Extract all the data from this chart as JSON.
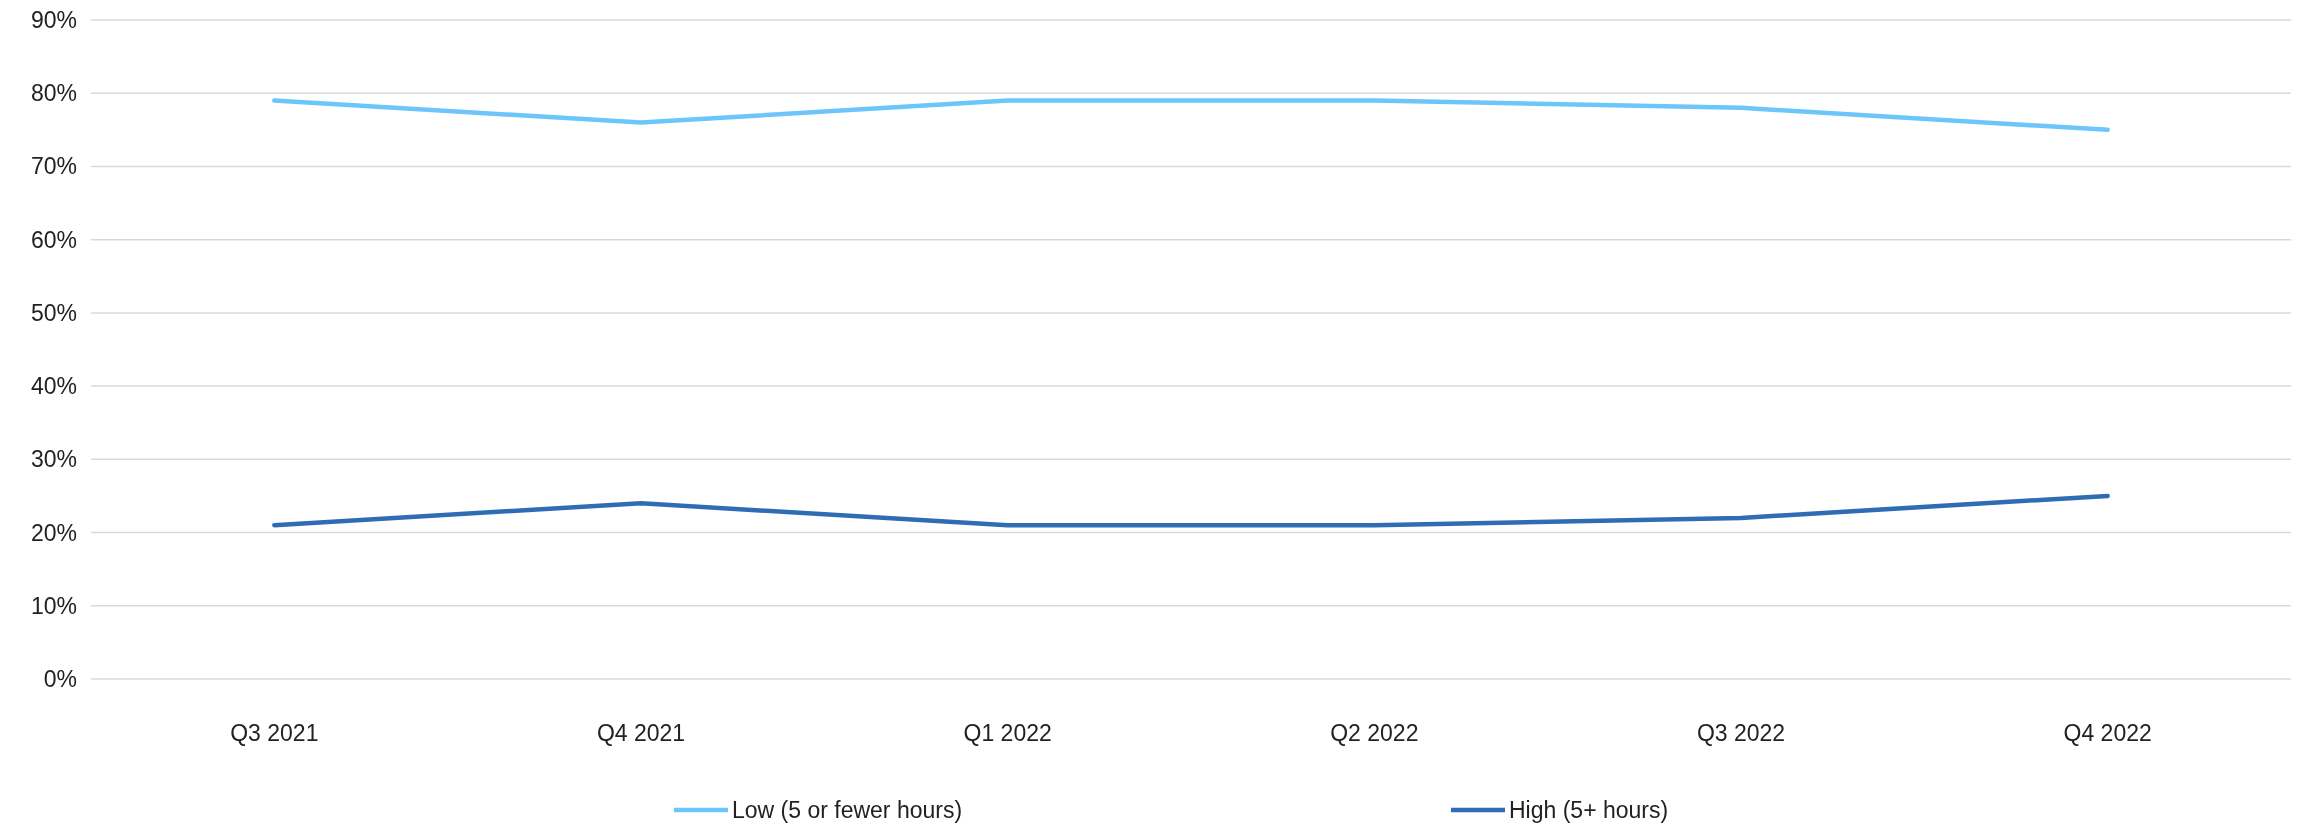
{
  "chart_data": {
    "type": "line",
    "categories": [
      "Q3 2021",
      "Q4 2021",
      "Q1 2022",
      "Q2 2022",
      "Q3 2022",
      "Q4 2022"
    ],
    "series": [
      {
        "name": "Low (5 or fewer hours)",
        "color": "#6cc6fb",
        "values": [
          79,
          76,
          79,
          79,
          78,
          75
        ]
      },
      {
        "name": "High (5+ hours)",
        "color": "#2e6db4",
        "values": [
          21,
          24,
          21,
          21,
          22,
          25
        ]
      }
    ],
    "ylim": [
      0,
      90
    ],
    "yticks": [
      {
        "value": 0,
        "label": "0%"
      },
      {
        "value": 10,
        "label": "10%"
      },
      {
        "value": 20,
        "label": "20%"
      },
      {
        "value": 30,
        "label": "30%"
      },
      {
        "value": 40,
        "label": "40%"
      },
      {
        "value": 50,
        "label": "50%"
      },
      {
        "value": 60,
        "label": "60%"
      },
      {
        "value": 70,
        "label": "70%"
      },
      {
        "value": 80,
        "label": "80%"
      },
      {
        "value": 90,
        "label": "90%"
      }
    ],
    "grid": "y",
    "legend": "bottom",
    "marker": "none",
    "line_style": "solid"
  }
}
